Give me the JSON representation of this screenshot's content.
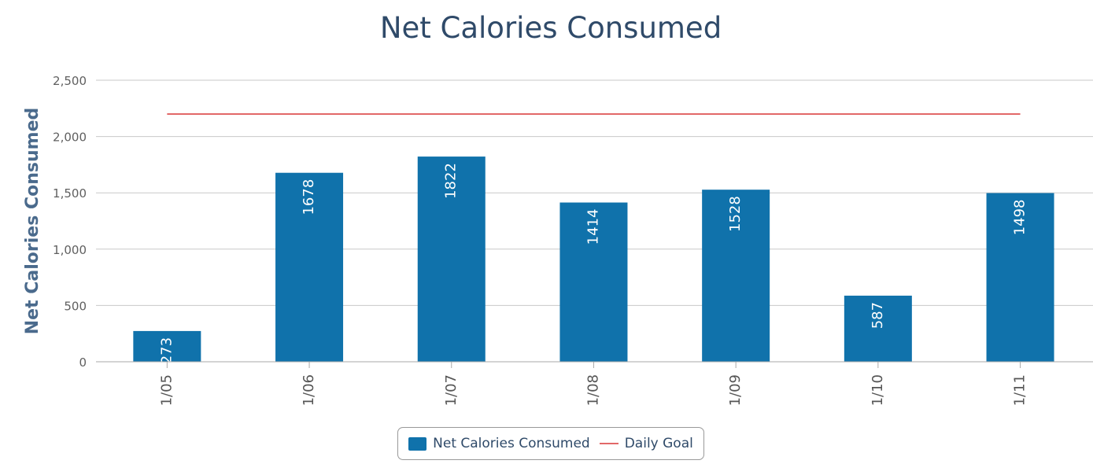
{
  "chart_data": {
    "type": "bar",
    "title": "Net Calories Consumed",
    "ylabel": "Net Calories Consumed",
    "xlabel": "",
    "categories": [
      "1/05",
      "1/06",
      "1/07",
      "1/08",
      "1/09",
      "1/10",
      "1/11"
    ],
    "series": [
      {
        "name": "Net Calories Consumed",
        "type": "bar",
        "values": [
          273,
          1678,
          1822,
          1414,
          1528,
          587,
          1498
        ],
        "data_labels": [
          "273",
          "1678",
          "1822",
          "1414",
          "1528",
          "587",
          "1498"
        ],
        "color": "#1072ab"
      },
      {
        "name": "Daily Goal",
        "type": "line",
        "value": 2200,
        "color": "#e26868"
      }
    ],
    "ylim": [
      0,
      2500
    ],
    "yticks": [
      0,
      500,
      1000,
      1500,
      2000,
      2500
    ],
    "ytick_labels": [
      "0",
      "500",
      "1,000",
      "1,500",
      "2,000",
      "2,500"
    ],
    "grid": true,
    "legend_position": "bottom-center"
  }
}
